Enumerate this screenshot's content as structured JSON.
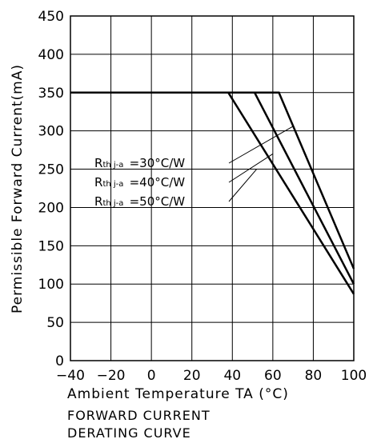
{
  "chart_data": {
    "type": "line",
    "xlabel": "Ambient Temperature TA (°C)",
    "ylabel": "Permissible Forward Current(mA)",
    "xlim": [
      -40,
      100
    ],
    "ylim": [
      0,
      450
    ],
    "x_ticks": [
      "−40",
      "−20",
      "0",
      "20",
      "40",
      "60",
      "80",
      "100"
    ],
    "x_tick_values": [
      -40,
      -20,
      0,
      20,
      40,
      60,
      80,
      100
    ],
    "y_ticks": [
      "0",
      "50",
      "100",
      "150",
      "200",
      "250",
      "300",
      "350",
      "400",
      "450"
    ],
    "y_tick_values": [
      0,
      50,
      100,
      150,
      200,
      250,
      300,
      350,
      400,
      450
    ],
    "grid": true,
    "series": [
      {
        "name": "Rth j-a =30°C/W",
        "x": [
          -40,
          63,
          100
        ],
        "y": [
          350,
          350,
          120
        ]
      },
      {
        "name": "Rth j-a =40°C/W",
        "x": [
          -40,
          51,
          100
        ],
        "y": [
          350,
          350,
          100
        ]
      },
      {
        "name": "Rth j-a =50°C/W",
        "x": [
          -40,
          38,
          100
        ],
        "y": [
          350,
          350,
          87
        ]
      }
    ],
    "annotations": [
      {
        "main": "R",
        "sub": "th",
        "mid": " j-a ",
        "value": "=30°C/W",
        "target": [
          70,
          306
        ]
      },
      {
        "main": "R",
        "sub": "th",
        "mid": " j-a ",
        "value": "=40°C/W",
        "target": [
          60,
          270
        ]
      },
      {
        "main": "R",
        "sub": "th",
        "mid": " j-a ",
        "value": "=50°C/W",
        "target": [
          52,
          250
        ]
      }
    ],
    "caption": [
      "FORWARD CURRENT",
      "DERATING CURVE"
    ]
  }
}
